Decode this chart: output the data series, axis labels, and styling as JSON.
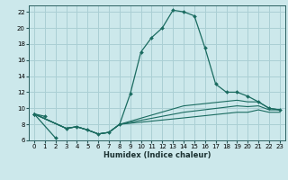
{
  "xlabel": "Humidex (Indice chaleur)",
  "bg_color": "#cce8eb",
  "grid_color": "#aacfd4",
  "line_color": "#1a6b60",
  "xlim": [
    -0.5,
    23.5
  ],
  "ylim": [
    6,
    22.8
  ],
  "xticks": [
    0,
    1,
    2,
    3,
    4,
    5,
    6,
    7,
    8,
    9,
    10,
    11,
    12,
    13,
    14,
    15,
    16,
    17,
    18,
    19,
    20,
    21,
    22,
    23
  ],
  "yticks": [
    6,
    8,
    10,
    12,
    14,
    16,
    18,
    20,
    22
  ],
  "lines": [
    {
      "x": [
        0,
        3,
        4,
        5,
        6,
        7,
        8,
        9,
        10,
        11,
        12,
        13,
        14,
        15,
        16,
        17,
        18,
        19,
        20,
        21,
        22,
        23
      ],
      "y": [
        9.3,
        7.5,
        7.7,
        7.3,
        6.8,
        7.0,
        8.0,
        11.8,
        17.0,
        18.8,
        20.0,
        22.2,
        22.0,
        21.5,
        17.5,
        13.0,
        12.0,
        12.0,
        11.5,
        10.8,
        10.0,
        9.8
      ],
      "marker": true
    },
    {
      "x": [
        0,
        1
      ],
      "y": [
        9.3,
        9.0
      ],
      "marker": true
    },
    {
      "x": [
        0,
        2
      ],
      "y": [
        9.3,
        6.3
      ],
      "marker": true
    },
    {
      "x": [
        0,
        3,
        4,
        5,
        6,
        7,
        8,
        14,
        19,
        20,
        21,
        22,
        23
      ],
      "y": [
        9.3,
        7.5,
        7.7,
        7.3,
        6.8,
        7.0,
        8.0,
        10.3,
        11.0,
        10.8,
        10.8,
        10.0,
        9.8
      ],
      "marker": false
    },
    {
      "x": [
        0,
        3,
        4,
        5,
        6,
        7,
        8,
        14,
        19,
        20,
        21,
        22,
        23
      ],
      "y": [
        9.3,
        7.5,
        7.7,
        7.3,
        6.8,
        7.0,
        8.0,
        9.5,
        10.3,
        10.2,
        10.3,
        9.8,
        9.8
      ],
      "marker": false
    },
    {
      "x": [
        0,
        3,
        4,
        5,
        6,
        7,
        8,
        14,
        19,
        20,
        21,
        22,
        23
      ],
      "y": [
        9.3,
        7.5,
        7.7,
        7.3,
        6.8,
        7.0,
        8.0,
        8.8,
        9.5,
        9.5,
        9.8,
        9.5,
        9.5
      ],
      "marker": false
    }
  ]
}
